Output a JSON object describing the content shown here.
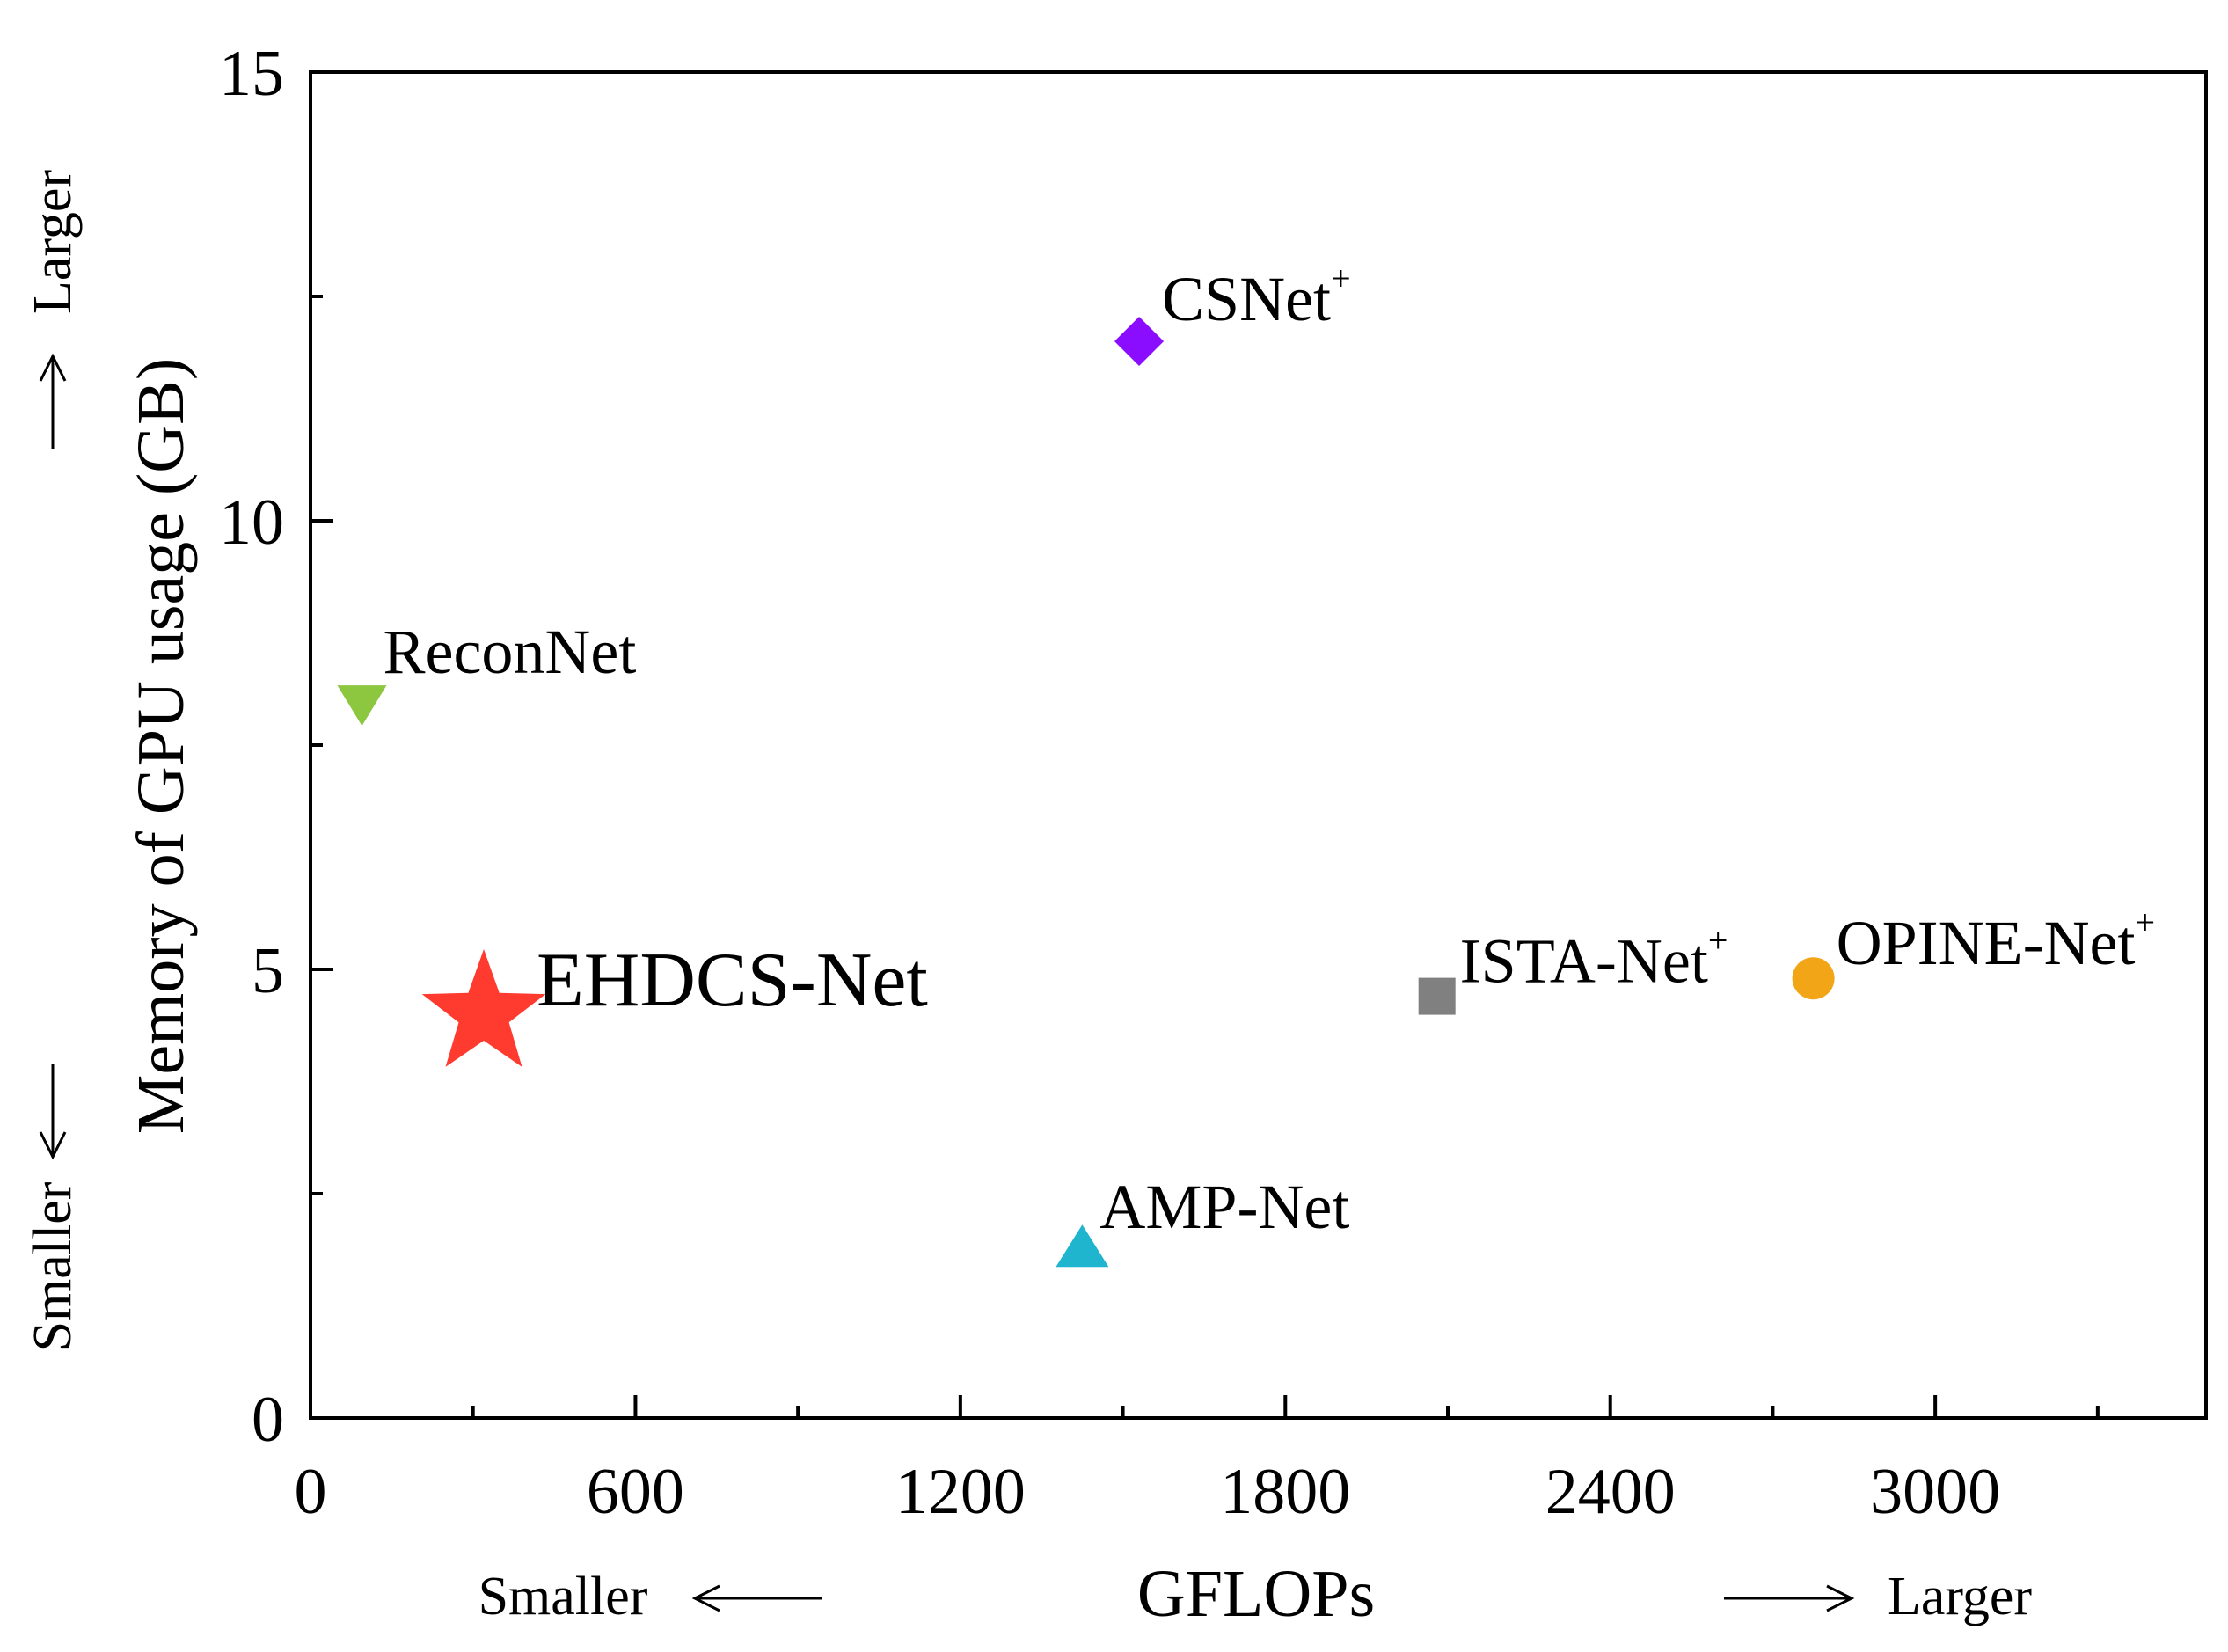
{
  "chart_data": {
    "type": "scatter",
    "title": "",
    "xlabel": "GFLOPs",
    "ylabel": "Memory of GPU usage (GB)",
    "xlim": [
      0,
      3500
    ],
    "ylim": [
      0,
      15
    ],
    "xticks": [
      "0",
      "600",
      "1200",
      "1800",
      "2400",
      "3000"
    ],
    "yticks": [
      "0",
      "5",
      "10",
      "15"
    ],
    "grid": false,
    "x_direction": {
      "smaller": "Smaller",
      "larger": "Larger"
    },
    "y_direction": {
      "smaller": "Smaller",
      "larger": "Larger"
    },
    "points": [
      {
        "name": "CSNet",
        "sup": "+",
        "x": 1530,
        "y": 12.0,
        "marker": "diamond",
        "color": "#8a0dff"
      },
      {
        "name": "ReconNet",
        "sup": "",
        "x": 95,
        "y": 7.95,
        "marker": "triangle-down",
        "color": "#8dc63f"
      },
      {
        "name": "EHDCS-Net",
        "sup": "",
        "x": 320,
        "y": 4.5,
        "marker": "star",
        "color": "#ff3b30"
      },
      {
        "name": "ISTA-Net",
        "sup": "+",
        "x": 2080,
        "y": 4.7,
        "marker": "square",
        "color": "#808080"
      },
      {
        "name": "OPINE-Net",
        "sup": "+",
        "x": 2775,
        "y": 4.9,
        "marker": "circle",
        "color": "#f2a516"
      },
      {
        "name": "AMP-Net",
        "sup": "",
        "x": 1425,
        "y": 1.9,
        "marker": "triangle-up",
        "color": "#1fb5cf"
      }
    ]
  }
}
